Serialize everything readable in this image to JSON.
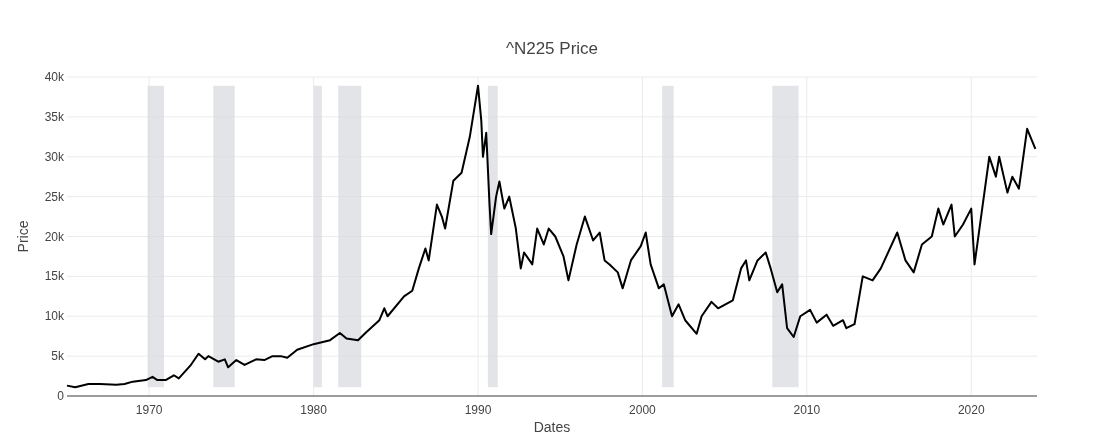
{
  "chart_data": {
    "type": "line",
    "title": "^N225 Price",
    "xlabel": "Dates",
    "ylabel": "Price",
    "xlim": [
      1965,
      2024
    ],
    "xticks": [
      1970,
      1980,
      1990,
      2000,
      2010,
      2020
    ],
    "ylim": [
      0,
      40000
    ],
    "yticks": [
      0,
      {
        "value": 5000,
        "label": "5k"
      },
      {
        "value": 10000,
        "label": "10k"
      },
      {
        "value": 15000,
        "label": "15k"
      },
      {
        "value": 20000,
        "label": "20k"
      },
      {
        "value": 25000,
        "label": "25k"
      },
      {
        "value": 30000,
        "label": "30k"
      },
      {
        "value": 35000,
        "label": "35k"
      },
      {
        "value": 40000,
        "label": "40k"
      }
    ],
    "grid": true,
    "series": [
      {
        "color": "#000000",
        "x": [
          1965.0,
          1965.5,
          1966.3,
          1967,
          1968,
          1968.5,
          1969,
          1969.8,
          1970.2,
          1970.5,
          1971.0,
          1971.5,
          1971.8,
          1972.5,
          1973.0,
          1973.4,
          1973.6,
          1974.2,
          1974.6,
          1974.8,
          1975.3,
          1975.8,
          1976.5,
          1977.0,
          1977.5,
          1978.0,
          1978.4,
          1979.0,
          1980.0,
          1981.0,
          1981.6,
          1982.0,
          1982.7,
          1983.2,
          1984.0,
          1984.3,
          1984.5,
          1985.5,
          1986.0,
          1986.4,
          1986.8,
          1987.0,
          1987.5,
          1987.8,
          1988.0,
          1988.5,
          1989.0,
          1989.5,
          1990.0,
          1990.2,
          1990.3,
          1990.5,
          1990.7,
          1990.8,
          1991.1,
          1991.3,
          1991.6,
          1991.9,
          1992.3,
          1992.6,
          1992.8,
          1993.3,
          1993.6,
          1994.0,
          1994.3,
          1994.7,
          1995.2,
          1995.5,
          1996.0,
          1996.5,
          1997.0,
          1997.4,
          1997.7,
          1998.0,
          1998.5,
          1998.8,
          1999.3,
          1999.9,
          2000.2,
          2000.5,
          2001.0,
          2001.3,
          2001.8,
          2002.2,
          2002.6,
          2003.3,
          2003.6,
          2004.2,
          2004.6,
          2005.5,
          2006.0,
          2006.3,
          2006.5,
          2007.0,
          2007.5,
          2007.8,
          2008.2,
          2008.5,
          2008.8,
          2009.2,
          2009.6,
          2010.2,
          2010.6,
          2011.2,
          2011.6,
          2012.2,
          2012.4,
          2012.9,
          2013.4,
          2014.0,
          2014.5,
          2015.5,
          2016.0,
          2016.5,
          2017.0,
          2017.6,
          2018.0,
          2018.3,
          2018.8,
          2019.0,
          2019.5,
          2020.0,
          2020.2,
          2020.6,
          2021.1,
          2021.5,
          2021.7,
          2022.2,
          2022.5,
          2022.9,
          2023.4,
          2023.9
        ],
        "values": [
          1300,
          1100,
          1500,
          1500,
          1400,
          1500,
          1800,
          2000,
          2400,
          2000,
          2000,
          2600,
          2200,
          3800,
          5300,
          4600,
          5000,
          4300,
          4600,
          3600,
          4500,
          3900,
          4600,
          4500,
          5000,
          5000,
          4800,
          5800,
          6500,
          7000,
          7900,
          7200,
          7000,
          8000,
          9500,
          11000,
          10000,
          12500,
          13200,
          16000,
          18500,
          17000,
          24000,
          22500,
          21000,
          27000,
          28000,
          32500,
          38900,
          34500,
          30000,
          33000,
          24000,
          20300,
          25000,
          26900,
          23500,
          25000,
          21000,
          16000,
          18000,
          16500,
          21000,
          19000,
          21000,
          20000,
          17500,
          14500,
          19000,
          22500,
          19500,
          20500,
          17000,
          16500,
          15500,
          13500,
          17000,
          18800,
          20500,
          16500,
          13500,
          14000,
          10000,
          11500,
          9500,
          7800,
          10000,
          11800,
          11000,
          12000,
          16000,
          17000,
          14500,
          17000,
          18000,
          16000,
          13000,
          14000,
          8500,
          7400,
          10000,
          10800,
          9200,
          10200,
          8800,
          9500,
          8500,
          9000,
          15000,
          14500,
          16000,
          20500,
          17000,
          15500,
          19000,
          20000,
          23500,
          21500,
          24000,
          20000,
          21500,
          23500,
          16500,
          22500,
          30000,
          27500,
          30000,
          25500,
          27500,
          26000,
          33500,
          31000
        ]
      }
    ],
    "bands": [
      {
        "axis": "x",
        "from": 1969.9,
        "to": 1970.9,
        "color": "#d5d9de"
      },
      {
        "axis": "x",
        "from": 1973.9,
        "to": 1975.2,
        "color": "#d5d9de"
      },
      {
        "axis": "x",
        "from": 1980.0,
        "to": 1980.5,
        "color": "#d5d9de"
      },
      {
        "axis": "x",
        "from": 1981.5,
        "to": 1982.9,
        "color": "#d5d9de"
      },
      {
        "axis": "x",
        "from": 1990.6,
        "to": 1991.2,
        "color": "#d5d9de"
      },
      {
        "axis": "x",
        "from": 2001.2,
        "to": 2001.9,
        "color": "#d5d9de"
      },
      {
        "axis": "x",
        "from": 2007.9,
        "to": 2009.5,
        "color": "#d5d9de"
      }
    ]
  }
}
